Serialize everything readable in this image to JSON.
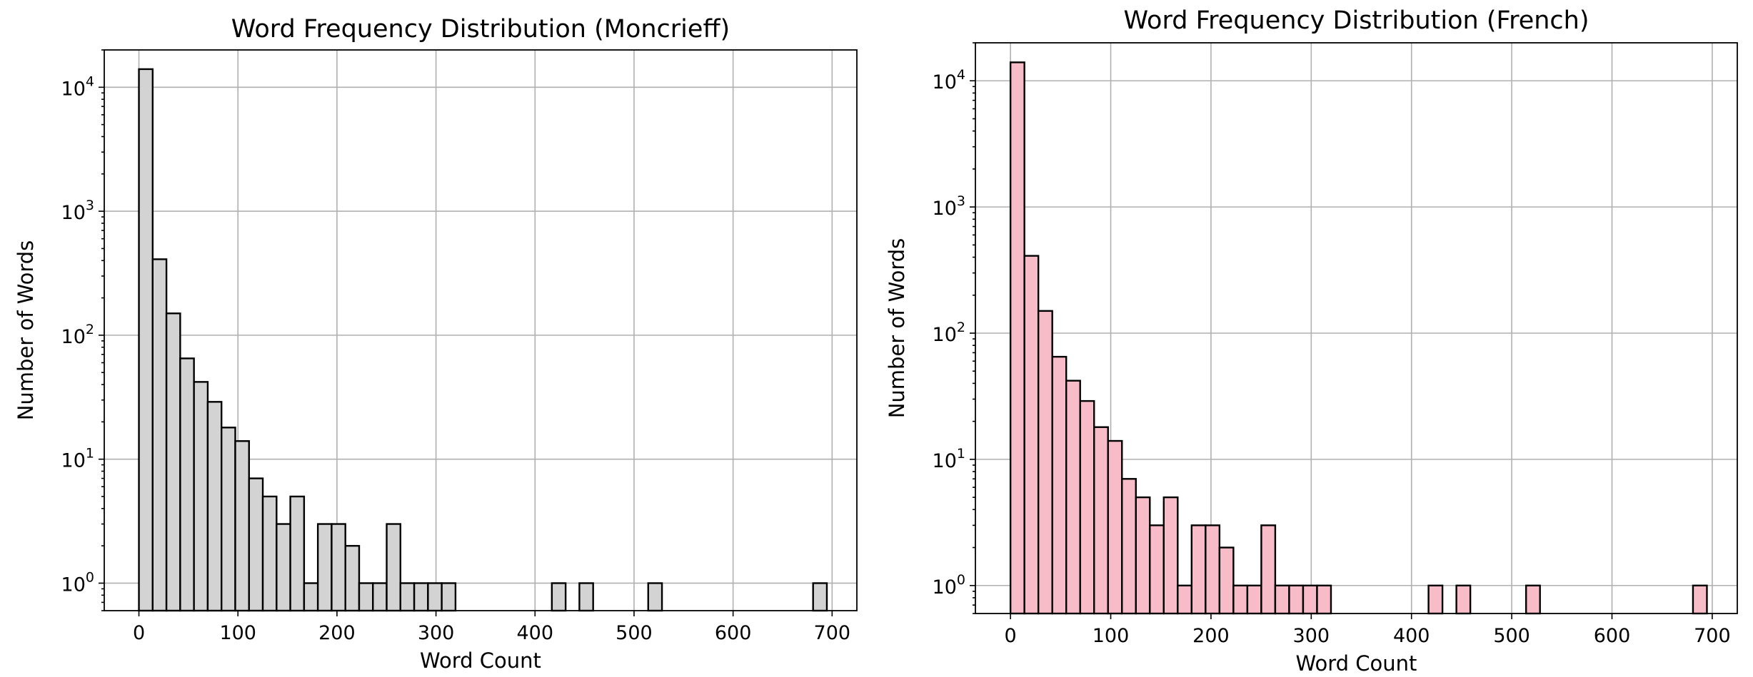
{
  "chart_data": [
    {
      "type": "bar",
      "title": "Word Frequency Distribution (Moncrieff)",
      "xlabel": "Word Count",
      "ylabel": "Number of Words",
      "xlim": [
        -35,
        725
      ],
      "ylim": [
        0.6,
        20000
      ],
      "yscale": "log",
      "grid": true,
      "bar_color": "#d3d3d3",
      "edge_color": "#000000",
      "xticks": [
        0,
        100,
        200,
        300,
        400,
        500,
        600,
        700
      ],
      "yticks": [
        1,
        10,
        100,
        1000,
        10000
      ],
      "bin_width": 13.9,
      "bins": [
        {
          "x": 0,
          "value": 14000
        },
        {
          "x": 13.9,
          "value": 410
        },
        {
          "x": 27.8,
          "value": 150
        },
        {
          "x": 41.7,
          "value": 65
        },
        {
          "x": 55.6,
          "value": 42
        },
        {
          "x": 69.5,
          "value": 29
        },
        {
          "x": 83.4,
          "value": 18
        },
        {
          "x": 97.3,
          "value": 14
        },
        {
          "x": 111.2,
          "value": 7
        },
        {
          "x": 125.1,
          "value": 5
        },
        {
          "x": 139,
          "value": 3
        },
        {
          "x": 152.9,
          "value": 5
        },
        {
          "x": 166.8,
          "value": 1
        },
        {
          "x": 180.7,
          "value": 3
        },
        {
          "x": 194.6,
          "value": 3
        },
        {
          "x": 208.5,
          "value": 2
        },
        {
          "x": 222.4,
          "value": 1
        },
        {
          "x": 236.3,
          "value": 1
        },
        {
          "x": 250.2,
          "value": 3
        },
        {
          "x": 264.1,
          "value": 1
        },
        {
          "x": 278,
          "value": 1
        },
        {
          "x": 291.9,
          "value": 1
        },
        {
          "x": 305.8,
          "value": 1
        },
        {
          "x": 417,
          "value": 1
        },
        {
          "x": 444.8,
          "value": 1
        },
        {
          "x": 514.3,
          "value": 1
        },
        {
          "x": 680.8,
          "value": 1
        }
      ]
    },
    {
      "type": "bar",
      "title": "Word Frequency Distribution (French)",
      "xlabel": "Word Count",
      "ylabel": "Number of Words",
      "xlim": [
        -35,
        725
      ],
      "ylim": [
        0.6,
        20000
      ],
      "yscale": "log",
      "grid": true,
      "bar_color": "#f7bcc8",
      "edge_color": "#000000",
      "xticks": [
        0,
        100,
        200,
        300,
        400,
        500,
        600,
        700
      ],
      "yticks": [
        1,
        10,
        100,
        1000,
        10000
      ],
      "bin_width": 13.9,
      "bins": [
        {
          "x": 0,
          "value": 14000
        },
        {
          "x": 13.9,
          "value": 410
        },
        {
          "x": 27.8,
          "value": 150
        },
        {
          "x": 41.7,
          "value": 65
        },
        {
          "x": 55.6,
          "value": 42
        },
        {
          "x": 69.5,
          "value": 29
        },
        {
          "x": 83.4,
          "value": 18
        },
        {
          "x": 97.3,
          "value": 14
        },
        {
          "x": 111.2,
          "value": 7
        },
        {
          "x": 125.1,
          "value": 5
        },
        {
          "x": 139,
          "value": 3
        },
        {
          "x": 152.9,
          "value": 5
        },
        {
          "x": 166.8,
          "value": 1
        },
        {
          "x": 180.7,
          "value": 3
        },
        {
          "x": 194.6,
          "value": 3
        },
        {
          "x": 208.5,
          "value": 2
        },
        {
          "x": 222.4,
          "value": 1
        },
        {
          "x": 236.3,
          "value": 1
        },
        {
          "x": 250.2,
          "value": 3
        },
        {
          "x": 264.1,
          "value": 1
        },
        {
          "x": 278,
          "value": 1
        },
        {
          "x": 291.9,
          "value": 1
        },
        {
          "x": 305.8,
          "value": 1
        },
        {
          "x": 417,
          "value": 1
        },
        {
          "x": 444.8,
          "value": 1
        },
        {
          "x": 514.3,
          "value": 1
        },
        {
          "x": 680.8,
          "value": 1
        }
      ]
    }
  ]
}
